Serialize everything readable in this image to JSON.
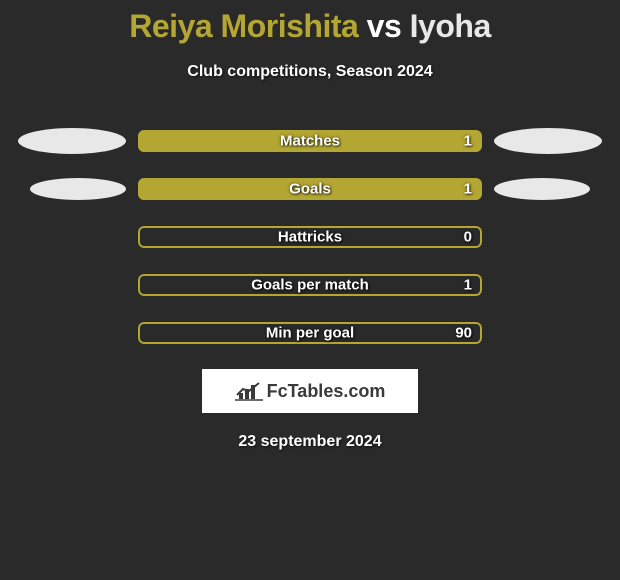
{
  "title": {
    "player1": "Reiya Morishita",
    "vs": " vs ",
    "player2": "Iyoha",
    "player1_color": "#b4a632",
    "vs_color": "#ffffff",
    "player2_color": "#e8e8e8"
  },
  "subtitle": "Club competitions, Season 2024",
  "background_color": "#2a2a2a",
  "ellipses": {
    "row0_left": {
      "color": "#e8e8e8",
      "size": "large"
    },
    "row0_right": {
      "color": "#e8e8e8",
      "size": "large"
    },
    "row1_left": {
      "color": "#e8e8e8",
      "size": "small"
    },
    "row1_right": {
      "color": "#e8e8e8",
      "size": "small"
    }
  },
  "bars": [
    {
      "label": "Matches",
      "value": "1",
      "fill_pct": 100,
      "fill_color": "#b4a632",
      "border_color": "#b4a632",
      "bg_color": "transparent"
    },
    {
      "label": "Goals",
      "value": "1",
      "fill_pct": 100,
      "fill_color": "#b4a632",
      "border_color": "#b4a632",
      "bg_color": "transparent"
    },
    {
      "label": "Hattricks",
      "value": "0",
      "fill_pct": 0,
      "fill_color": "#b4a632",
      "border_color": "#b4a632",
      "bg_color": "transparent"
    },
    {
      "label": "Goals per match",
      "value": "1",
      "fill_pct": 0,
      "fill_color": "#b4a632",
      "border_color": "#b4a632",
      "bg_color": "transparent"
    },
    {
      "label": "Min per goal",
      "value": "90",
      "fill_pct": 0,
      "fill_color": "#b4a632",
      "border_color": "#b4a632",
      "bg_color": "transparent"
    }
  ],
  "logo": {
    "text": "FcTables.com",
    "text_color": "#3a3a3a",
    "box_bg": "#ffffff"
  },
  "date": "23 september 2024"
}
